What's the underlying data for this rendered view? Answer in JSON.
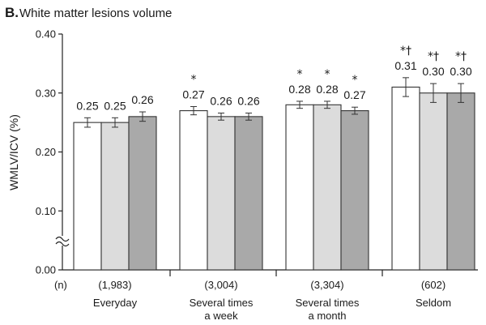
{
  "panel_letter": "B.",
  "chart_data": {
    "type": "bar",
    "title": "White matter lesions volume",
    "ylabel": "WMLV/ICV (%)",
    "ylim": [
      0.0,
      0.4
    ],
    "yticks": [
      "0.00",
      "0.10",
      "0.20",
      "0.30",
      "0.40"
    ],
    "axis_break": true,
    "n_label": "(n)",
    "categories": [
      {
        "lines": [
          "Everyday"
        ],
        "n": "(1,983)"
      },
      {
        "lines": [
          "Several times",
          "a week"
        ],
        "n": "(3,004)"
      },
      {
        "lines": [
          "Several times",
          "a month"
        ],
        "n": "(3,304)"
      },
      {
        "lines": [
          "Seldom"
        ],
        "n": "(602)"
      }
    ],
    "series": [
      {
        "color": "#ffffff",
        "values": [
          0.25,
          0.27,
          0.28,
          0.31
        ],
        "labels": [
          "0.25",
          "0.27",
          "0.28",
          "0.31"
        ],
        "errors": [
          0.008,
          0.007,
          0.006,
          0.016
        ],
        "markers": [
          "",
          "*",
          "*",
          "*†"
        ]
      },
      {
        "color": "#dcdcdc",
        "values": [
          0.25,
          0.26,
          0.28,
          0.3
        ],
        "labels": [
          "0.25",
          "0.26",
          "0.28",
          "0.30"
        ],
        "errors": [
          0.008,
          0.006,
          0.006,
          0.016
        ],
        "markers": [
          "",
          "",
          "*",
          "*†"
        ]
      },
      {
        "color": "#a9a9a9",
        "values": [
          0.26,
          0.26,
          0.27,
          0.3
        ],
        "labels": [
          "0.26",
          "0.26",
          "0.27",
          "0.30"
        ],
        "errors": [
          0.008,
          0.006,
          0.006,
          0.016
        ],
        "markers": [
          "",
          "",
          "*",
          "*†"
        ]
      }
    ]
  }
}
